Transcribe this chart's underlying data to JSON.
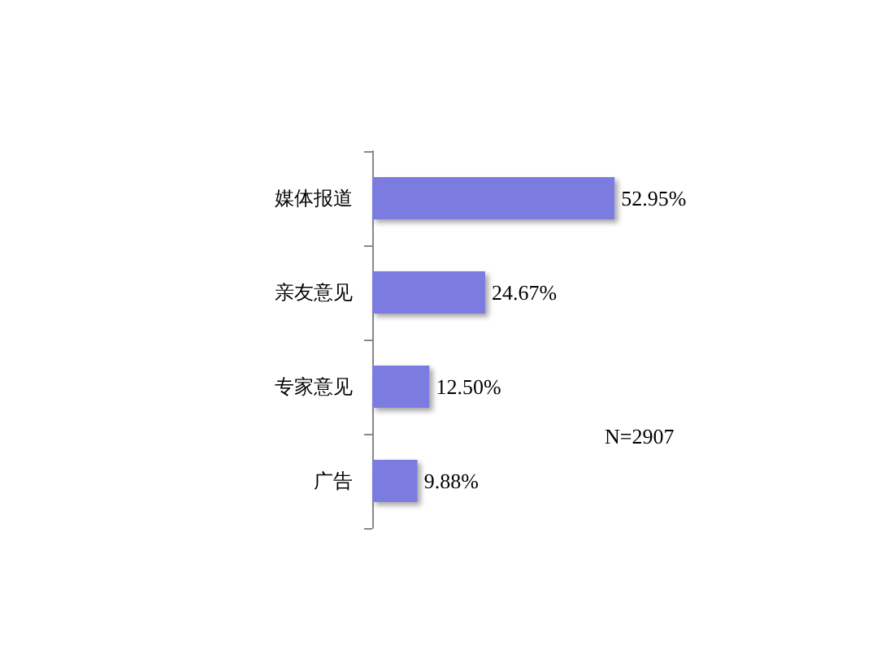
{
  "chart_data": {
    "type": "bar",
    "orientation": "horizontal",
    "categories": [
      "媒体报道",
      "亲友意见",
      "专家意见",
      "广告"
    ],
    "values": [
      52.95,
      24.67,
      12.5,
      9.88
    ],
    "color": "#7b7be0",
    "value_labels": [
      "52.95%",
      "24.67%",
      "12.50%",
      "9.88%"
    ],
    "annotations": [
      "N=2907"
    ]
  }
}
